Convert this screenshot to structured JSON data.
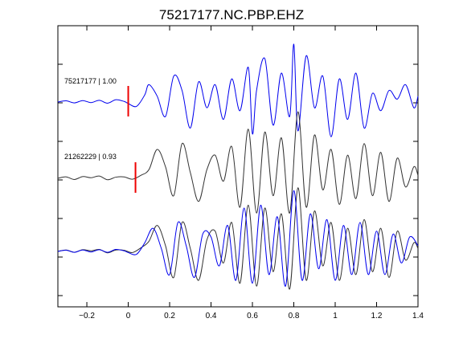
{
  "chart_data": {
    "type": "line",
    "title": "75217177.NC.PBP.EHZ",
    "xlabel": "",
    "ylabel": "",
    "xlim": [
      -0.34,
      1.4
    ],
    "x_ticks": [
      -0.2,
      0,
      0.2,
      0.4,
      0.6,
      0.8,
      1.0,
      1.2,
      1.4
    ],
    "x_tick_labels": [
      "−0.2",
      "0",
      "0.2",
      "0.4",
      "0.6",
      "0.8",
      "1",
      "1.2",
      "1.4"
    ],
    "grid": false,
    "legend": "none",
    "panels": [
      {
        "label": "75217177 | 1.00",
        "color": "#0000ee",
        "pick_time": 0.0,
        "x": [
          -0.34,
          -0.3,
          -0.26,
          -0.22,
          -0.18,
          -0.14,
          -0.1,
          -0.06,
          -0.02,
          0.0,
          0.04,
          0.08,
          0.1,
          0.14,
          0.18,
          0.22,
          0.26,
          0.3,
          0.34,
          0.38,
          0.42,
          0.46,
          0.5,
          0.54,
          0.58,
          0.6,
          0.62,
          0.66,
          0.7,
          0.74,
          0.78,
          0.8,
          0.82,
          0.86,
          0.9,
          0.94,
          0.98,
          1.02,
          1.06,
          1.1,
          1.14,
          1.18,
          1.22,
          1.26,
          1.3,
          1.34,
          1.38,
          1.4
        ],
        "y": [
          0.0,
          0.04,
          -0.03,
          0.05,
          -0.02,
          0.06,
          -0.04,
          0.08,
          0.02,
          -0.05,
          -0.15,
          0.25,
          0.6,
          0.2,
          -0.5,
          0.9,
          0.4,
          -0.9,
          0.7,
          -0.2,
          0.6,
          -0.6,
          0.8,
          -0.3,
          1.2,
          -1.1,
          0.4,
          1.5,
          -0.8,
          1.0,
          -0.5,
          2.0,
          -1.0,
          1.6,
          -0.2,
          0.9,
          -1.2,
          0.8,
          -0.6,
          1.0,
          -0.9,
          0.3,
          -0.3,
          0.4,
          0.1,
          0.6,
          -0.2,
          0.2
        ]
      },
      {
        "label": "21262229 | 0.93",
        "color": "#333333",
        "pick_time": 0.035,
        "x": [
          -0.34,
          -0.3,
          -0.26,
          -0.22,
          -0.18,
          -0.14,
          -0.1,
          -0.06,
          -0.02,
          0.02,
          0.06,
          0.1,
          0.14,
          0.18,
          0.22,
          0.26,
          0.3,
          0.34,
          0.38,
          0.42,
          0.46,
          0.5,
          0.54,
          0.58,
          0.62,
          0.66,
          0.7,
          0.74,
          0.78,
          0.82,
          0.86,
          0.9,
          0.94,
          0.98,
          1.02,
          1.06,
          1.1,
          1.14,
          1.18,
          1.22,
          1.26,
          1.3,
          1.34,
          1.38,
          1.4
        ],
        "y": [
          0.0,
          0.05,
          -0.04,
          0.06,
          0.02,
          0.08,
          -0.05,
          0.04,
          0.05,
          -0.03,
          0.1,
          0.3,
          1.0,
          0.4,
          -0.6,
          1.2,
          0.2,
          -0.8,
          0.3,
          0.8,
          -0.1,
          1.1,
          -1.0,
          1.7,
          -1.2,
          1.6,
          -0.6,
          1.4,
          -1.2,
          2.3,
          -1.0,
          1.5,
          -0.4,
          1.0,
          -0.9,
          0.8,
          -0.7,
          1.2,
          -0.6,
          0.9,
          -0.8,
          0.7,
          -0.3,
          0.4,
          0.1
        ]
      },
      {
        "label": "",
        "overlay": true,
        "series": [
          {
            "name": "",
            "color": "#333333",
            "x": [
              -0.34,
              -0.3,
              -0.26,
              -0.22,
              -0.18,
              -0.14,
              -0.1,
              -0.06,
              -0.02,
              0.02,
              0.06,
              0.1,
              0.14,
              0.18,
              0.22,
              0.26,
              0.3,
              0.34,
              0.38,
              0.42,
              0.46,
              0.5,
              0.54,
              0.58,
              0.62,
              0.66,
              0.7,
              0.74,
              0.78,
              0.82,
              0.86,
              0.9,
              0.94,
              0.98,
              1.02,
              1.06,
              1.1,
              1.14,
              1.18,
              1.22,
              1.26,
              1.3,
              1.34,
              1.38,
              1.4
            ],
            "y": [
              0.0,
              0.05,
              -0.03,
              0.06,
              0.02,
              0.07,
              -0.05,
              0.05,
              0.04,
              -0.04,
              0.12,
              0.35,
              0.9,
              0.2,
              -0.9,
              1.0,
              0.1,
              -1.0,
              0.4,
              0.7,
              -0.4,
              1.0,
              -1.1,
              1.6,
              -1.2,
              1.5,
              -0.7,
              1.3,
              -1.3,
              2.2,
              -1.0,
              1.4,
              -0.5,
              1.0,
              -1.0,
              0.8,
              -0.8,
              1.1,
              -0.7,
              0.8,
              -0.9,
              0.7,
              -0.3,
              0.3,
              0.1
            ]
          },
          {
            "name": "",
            "color": "#0000ee",
            "x": [
              -0.34,
              -0.3,
              -0.26,
              -0.22,
              -0.18,
              -0.14,
              -0.1,
              -0.06,
              -0.02,
              0.0,
              0.04,
              0.08,
              0.12,
              0.16,
              0.2,
              0.24,
              0.28,
              0.32,
              0.36,
              0.4,
              0.44,
              0.48,
              0.52,
              0.56,
              0.6,
              0.64,
              0.68,
              0.72,
              0.76,
              0.8,
              0.84,
              0.88,
              0.92,
              0.96,
              1.0,
              1.04,
              1.08,
              1.12,
              1.16,
              1.2,
              1.24,
              1.28,
              1.32,
              1.36,
              1.4
            ],
            "y": [
              0.0,
              0.04,
              -0.03,
              0.05,
              -0.02,
              0.06,
              -0.03,
              0.07,
              0.02,
              -0.04,
              -0.1,
              0.3,
              0.8,
              0.1,
              -0.8,
              1.0,
              0.2,
              -0.9,
              0.6,
              0.5,
              -0.5,
              0.9,
              -1.0,
              1.5,
              -1.1,
              1.6,
              -0.8,
              1.2,
              -1.2,
              2.1,
              -1.0,
              1.3,
              -0.6,
              1.1,
              -1.0,
              0.9,
              -0.8,
              1.0,
              -0.8,
              0.7,
              -0.8,
              0.6,
              -0.4,
              0.5,
              0.2
            ]
          }
        ]
      }
    ]
  }
}
